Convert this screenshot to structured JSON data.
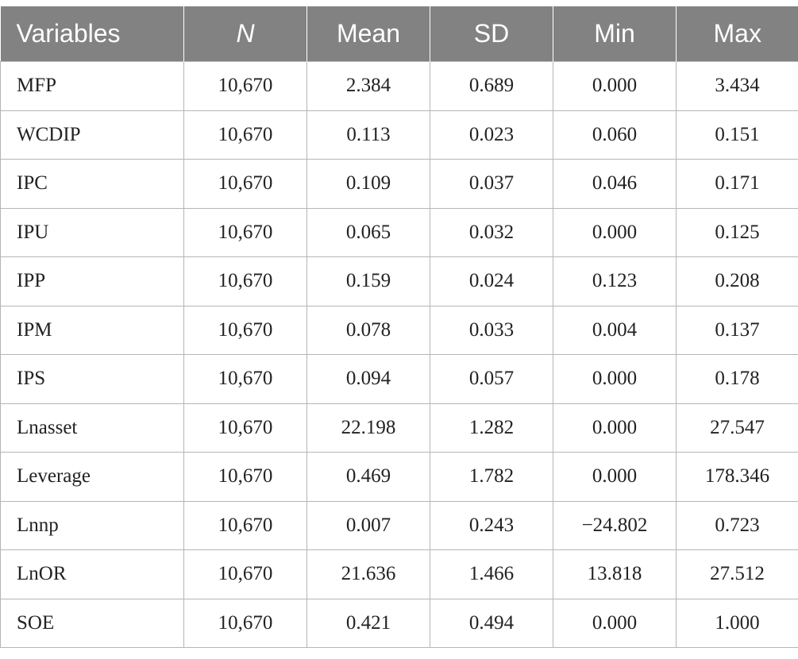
{
  "table": {
    "headers": [
      "Variables",
      "N",
      "Mean",
      "SD",
      "Min",
      "Max"
    ],
    "rows": [
      [
        "MFP",
        "10,670",
        "2.384",
        "0.689",
        "0.000",
        "3.434"
      ],
      [
        "WCDIP",
        "10,670",
        "0.113",
        "0.023",
        "0.060",
        "0.151"
      ],
      [
        "IPC",
        "10,670",
        "0.109",
        "0.037",
        "0.046",
        "0.171"
      ],
      [
        "IPU",
        "10,670",
        "0.065",
        "0.032",
        "0.000",
        "0.125"
      ],
      [
        "IPP",
        "10,670",
        "0.159",
        "0.024",
        "0.123",
        "0.208"
      ],
      [
        "IPM",
        "10,670",
        "0.078",
        "0.033",
        "0.004",
        "0.137"
      ],
      [
        "IPS",
        "10,670",
        "0.094",
        "0.057",
        "0.000",
        "0.178"
      ],
      [
        "Lnasset",
        "10,670",
        "22.198",
        "1.282",
        "0.000",
        "27.547"
      ],
      [
        "Leverage",
        "10,670",
        "0.469",
        "1.782",
        "0.000",
        "178.346"
      ],
      [
        "Lnnp",
        "10,670",
        "0.007",
        "0.243",
        "−24.802",
        "0.723"
      ],
      [
        "LnOR",
        "10,670",
        "21.636",
        "1.466",
        "13.818",
        "27.512"
      ],
      [
        "SOE",
        "10,670",
        "0.421",
        "0.494",
        "0.000",
        "1.000"
      ]
    ]
  }
}
